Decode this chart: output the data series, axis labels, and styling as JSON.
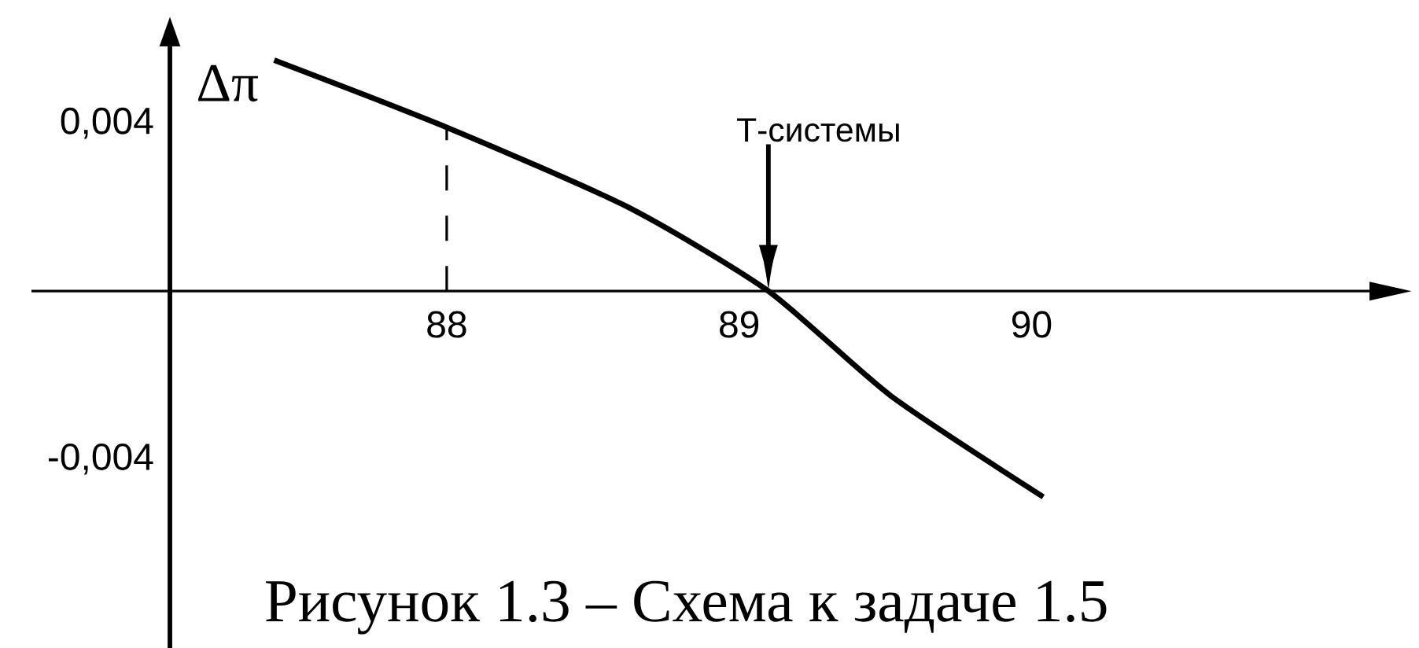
{
  "chart_data": {
    "type": "line",
    "ylabel": "Δπ",
    "x": [
      87.41,
      88,
      88.62,
      89.1,
      89.52,
      90.04
    ],
    "series": [
      {
        "color": "#000000",
        "values": [
          0.0055,
          0.0039,
          0.002,
          0,
          -0.0025,
          -0.0049
        ]
      }
    ],
    "xlim": [
      86.58,
      91.16
    ],
    "ylim": [
      -0.0085,
      0.00586
    ],
    "xticks": [
      88,
      89,
      90
    ],
    "yticks": [
      {
        "value": 0.004,
        "label": "0,004"
      },
      {
        "value": -0.004,
        "label": "-0,004"
      }
    ],
    "ref_lines": [
      {
        "axis": "x",
        "value": 88,
        "line_style": "dashed"
      }
    ],
    "annotations": [
      "Т-системы",
      "Рисунок 1.3 – Схема к задаче 1.5"
    ],
    "grid": false,
    "marker": "none",
    "line_style": "solid"
  }
}
